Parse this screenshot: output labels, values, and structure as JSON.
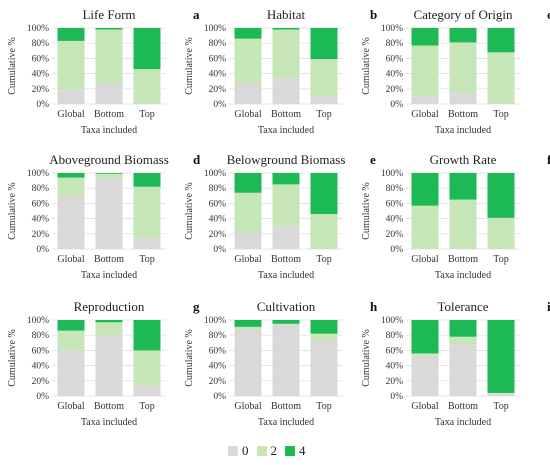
{
  "colors": {
    "0": "#d9d9d9",
    "2": "#c6e6b8",
    "4": "#1db954"
  },
  "legend": [
    {
      "label": "0",
      "color": "#d9d9d9"
    },
    {
      "label": "2",
      "color": "#c6e6b8"
    },
    {
      "label": "4",
      "color": "#1db954"
    }
  ],
  "chart_data": [
    {
      "panel": "a",
      "title": "Life Form",
      "type": "bar",
      "stacked": true,
      "categories": [
        "Global",
        "Bottom",
        "Top"
      ],
      "xlabel": "Taxa included",
      "ylabel": "Cumulative %",
      "yticks": [
        "0%",
        "20%",
        "40%",
        "60%",
        "80%",
        "100%"
      ],
      "ylim": [
        0,
        100
      ],
      "series": [
        {
          "name": "0",
          "values": [
            18,
            27,
            0
          ]
        },
        {
          "name": "2",
          "values": [
            65,
            71,
            46
          ]
        },
        {
          "name": "4",
          "values": [
            17,
            2,
            54
          ]
        }
      ]
    },
    {
      "panel": "b",
      "title": "Habitat",
      "type": "bar",
      "stacked": true,
      "categories": [
        "Global",
        "Bottom",
        "Top"
      ],
      "xlabel": "Taxa included",
      "ylabel": "Cumulative %",
      "yticks": [
        "0%",
        "20%",
        "40%",
        "60%",
        "80%",
        "100%"
      ],
      "ylim": [
        0,
        100
      ],
      "series": [
        {
          "name": "0",
          "values": [
            27,
            35,
            10
          ]
        },
        {
          "name": "2",
          "values": [
            59,
            63,
            49
          ]
        },
        {
          "name": "4",
          "values": [
            14,
            2,
            41
          ]
        }
      ]
    },
    {
      "panel": "c",
      "title": "Category of Origin",
      "type": "bar",
      "stacked": true,
      "categories": [
        "Global",
        "Bottom",
        "Top"
      ],
      "xlabel": "Taxa included",
      "ylabel": "Cumulative %",
      "yticks": [
        "0%",
        "20%",
        "40%",
        "60%",
        "80%",
        "100%"
      ],
      "ylim": [
        0,
        100
      ],
      "series": [
        {
          "name": "0",
          "values": [
            10,
            15,
            0
          ]
        },
        {
          "name": "2",
          "values": [
            67,
            66,
            68
          ]
        },
        {
          "name": "4",
          "values": [
            23,
            19,
            32
          ]
        }
      ]
    },
    {
      "panel": "d",
      "title": "Aboveground Biomass",
      "type": "bar",
      "stacked": true,
      "categories": [
        "Global",
        "Bottom",
        "Top"
      ],
      "xlabel": "Taxa included",
      "ylabel": "Cumulative %",
      "yticks": [
        "0%",
        "20%",
        "40%",
        "60%",
        "80%",
        "100%"
      ],
      "ylim": [
        0,
        100
      ],
      "series": [
        {
          "name": "0",
          "values": [
            70,
            93,
            15
          ]
        },
        {
          "name": "2",
          "values": [
            24,
            6,
            67
          ]
        },
        {
          "name": "4",
          "values": [
            6,
            1,
            18
          ]
        }
      ]
    },
    {
      "panel": "e",
      "title": "Belowground Biomass",
      "type": "bar",
      "stacked": true,
      "categories": [
        "Global",
        "Bottom",
        "Top"
      ],
      "xlabel": "Taxa included",
      "ylabel": "Cumulative %",
      "yticks": [
        "0%",
        "20%",
        "40%",
        "60%",
        "80%",
        "100%"
      ],
      "ylim": [
        0,
        100
      ],
      "series": [
        {
          "name": "0",
          "values": [
            21,
            30,
            0
          ]
        },
        {
          "name": "2",
          "values": [
            53,
            55,
            46
          ]
        },
        {
          "name": "4",
          "values": [
            26,
            15,
            54
          ]
        }
      ]
    },
    {
      "panel": "f",
      "title": "Growth Rate",
      "type": "bar",
      "stacked": true,
      "categories": [
        "Global",
        "Bottom",
        "Top"
      ],
      "xlabel": "Taxa included",
      "ylabel": "Cumulative %",
      "yticks": [
        "0%",
        "20%",
        "40%",
        "60%",
        "80%",
        "100%"
      ],
      "ylim": [
        0,
        100
      ],
      "series": [
        {
          "name": "0",
          "values": [
            0,
            0,
            0
          ]
        },
        {
          "name": "2",
          "values": [
            57,
            65,
            41
          ]
        },
        {
          "name": "4",
          "values": [
            43,
            35,
            59
          ]
        }
      ]
    },
    {
      "panel": "g",
      "title": "Reproduction",
      "type": "bar",
      "stacked": true,
      "categories": [
        "Global",
        "Bottom",
        "Top"
      ],
      "xlabel": "Taxa included",
      "ylabel": "Cumulative %",
      "yticks": [
        "0%",
        "20%",
        "40%",
        "60%",
        "80%",
        "100%"
      ],
      "ylim": [
        0,
        100
      ],
      "series": [
        {
          "name": "0",
          "values": [
            61,
            80,
            14
          ]
        },
        {
          "name": "2",
          "values": [
            25,
            17,
            46
          ]
        },
        {
          "name": "4",
          "values": [
            14,
            3,
            40
          ]
        }
      ]
    },
    {
      "panel": "h",
      "title": "Cultivation",
      "type": "bar",
      "stacked": true,
      "categories": [
        "Global",
        "Bottom",
        "Top"
      ],
      "xlabel": "Taxa included",
      "ylabel": "Cumulative %",
      "yticks": [
        "0%",
        "20%",
        "40%",
        "60%",
        "80%",
        "100%"
      ],
      "ylim": [
        0,
        100
      ],
      "series": [
        {
          "name": "0",
          "values": [
            89,
            94,
            74
          ]
        },
        {
          "name": "2",
          "values": [
            2,
            1,
            8
          ]
        },
        {
          "name": "4",
          "values": [
            9,
            5,
            18
          ]
        }
      ]
    },
    {
      "panel": "i",
      "title": "Tolerance",
      "type": "bar",
      "stacked": true,
      "categories": [
        "Global",
        "Bottom",
        "Top"
      ],
      "xlabel": "Taxa included",
      "ylabel": "Cumulative %",
      "yticks": [
        "0%",
        "20%",
        "40%",
        "60%",
        "80%",
        "100%"
      ],
      "ylim": [
        0,
        100
      ],
      "series": [
        {
          "name": "0",
          "values": [
            53,
            68,
            3
          ]
        },
        {
          "name": "2",
          "values": [
            3,
            10,
            1
          ]
        },
        {
          "name": "4",
          "values": [
            44,
            22,
            96
          ]
        }
      ]
    }
  ]
}
